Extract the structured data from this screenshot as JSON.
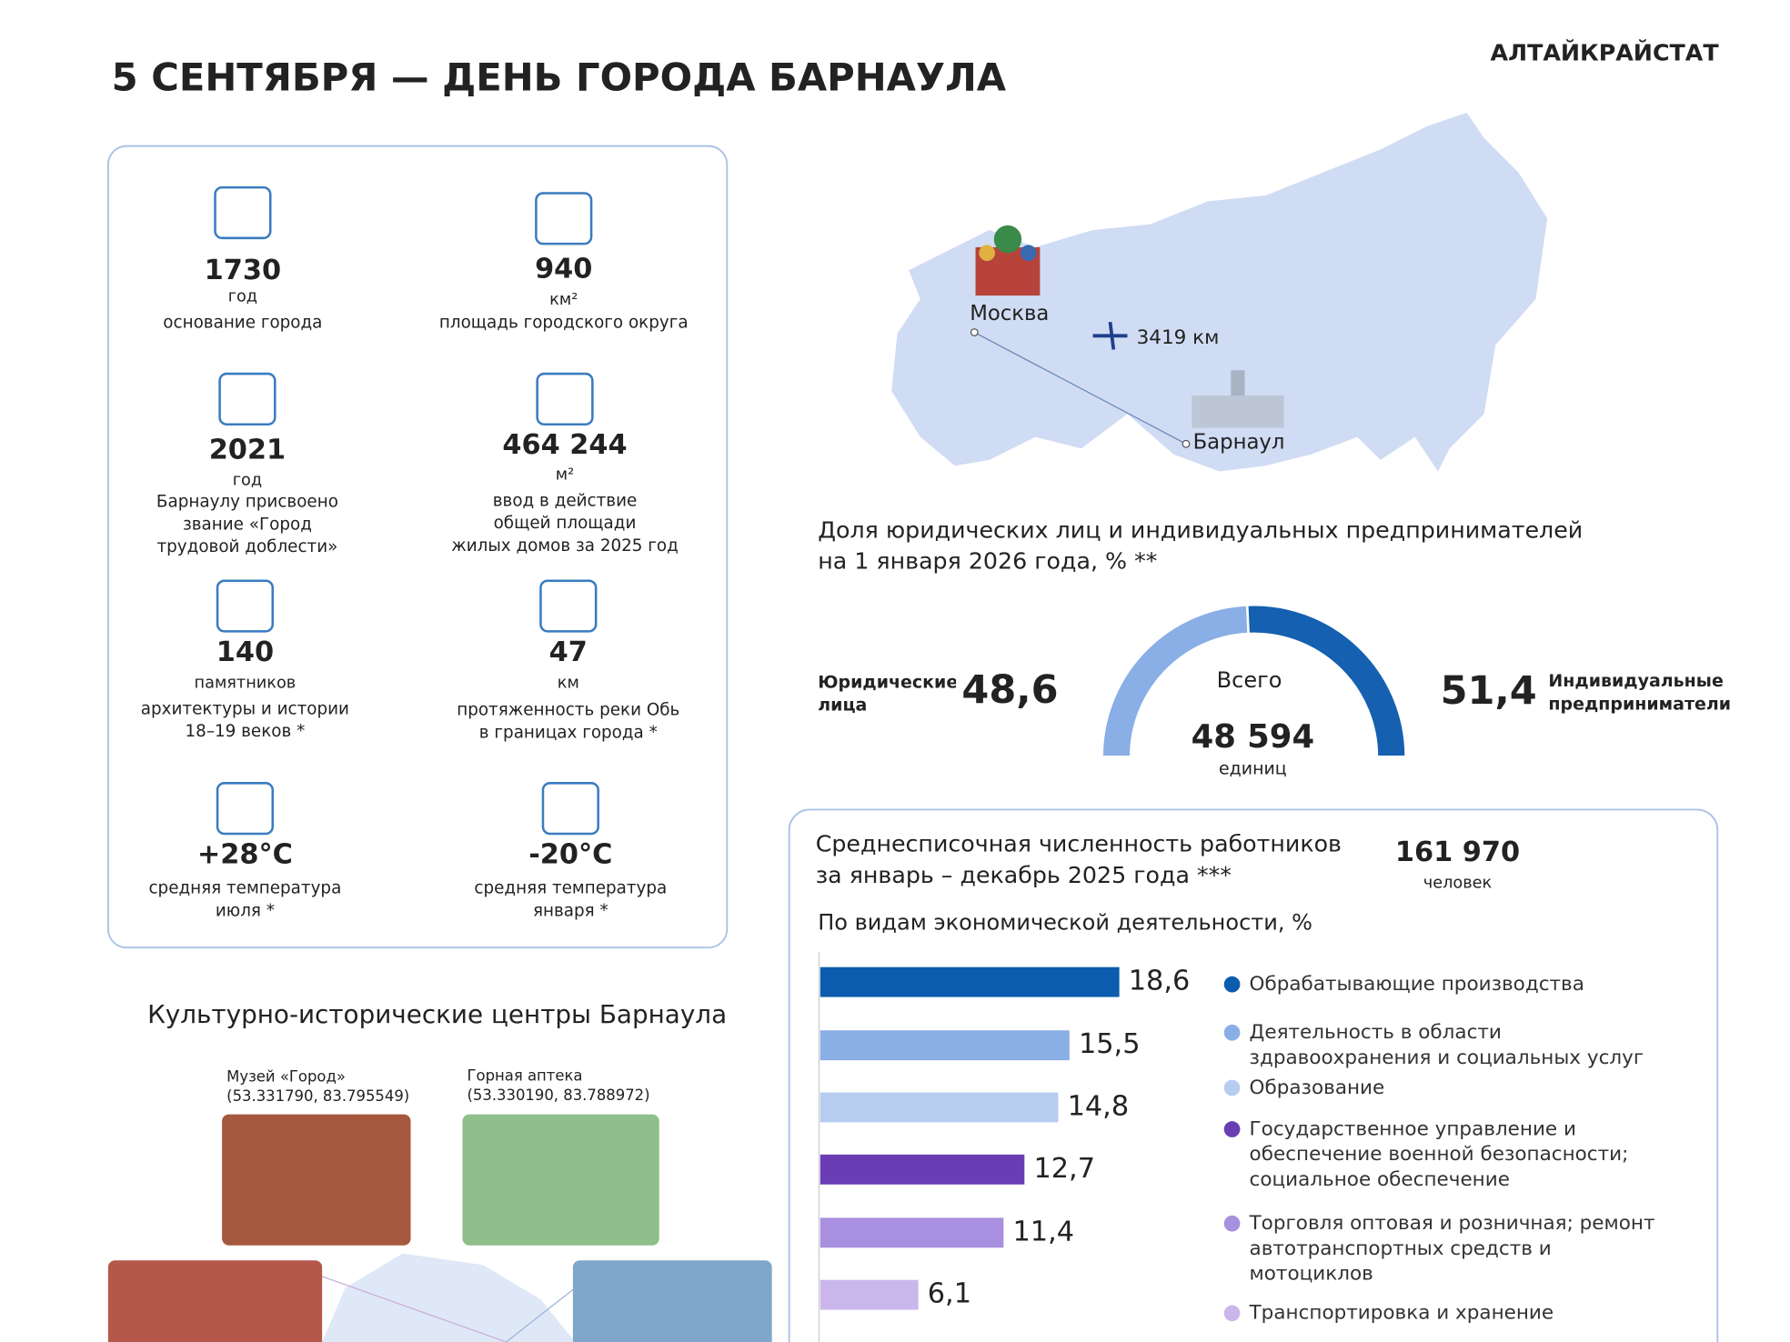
{
  "header": {
    "title": "5 СЕНТЯБРЯ —  ДЕНЬ ГОРОДА БАРНАУЛА",
    "brand": "АЛТАЙКРАЙСТАТ"
  },
  "facts": [
    {
      "value": "1730",
      "unit": "год",
      "description": [
        "основание города"
      ]
    },
    {
      "value": "940",
      "unit": "км²",
      "description": [
        "площадь городского округа"
      ]
    },
    {
      "value": "2021",
      "unit": "год",
      "description": [
        "Барнаулу присвоено",
        "звание «Город",
        "трудовой доблести»"
      ]
    },
    {
      "value": "464 244",
      "unit": "м²",
      "description": [
        "ввод в действие",
        "общей площади",
        "жилых домов за 2025 год"
      ]
    },
    {
      "value": "140",
      "unit": "памятников",
      "description": [
        "архитектуры и истории",
        "18–19 веков *"
      ]
    },
    {
      "value": "47",
      "unit": "км",
      "description": [
        "протяженность реки Обь",
        "в границах города *"
      ]
    },
    {
      "value": "+28°С",
      "description": [
        "средняя температура",
        "июля *"
      ]
    },
    {
      "value": "-20°С",
      "description": [
        "средняя температура",
        "января *"
      ]
    }
  ],
  "map": {
    "moscow": "Москва",
    "barnaul": "Барнаул",
    "distance": "3419 км"
  },
  "culture": {
    "title": "Культурно-исторические центры Барнаула",
    "places": [
      {
        "name": "Музей «Город»",
        "coords": "(53.331790, 83.795549)"
      },
      {
        "name": "Горная аптека",
        "coords": "(53.330190, 83.788972)"
      }
    ]
  },
  "enterprises": {
    "label": "Всего",
    "total": "48 594",
    "unit": "единиц"
  },
  "workers": {
    "title": [
      "Среднесписочная численность работников",
      "за январь – декабрь 2025 года ***"
    ],
    "total": "161 970",
    "unit": "человек"
  },
  "chart_data": [
    {
      "type": "pie",
      "title": [
        "Доля юридических лиц и индивидуальных предпринимателей",
        "на 1 января 2026 года, % **"
      ],
      "categories": [
        "Юридические лица",
        "Индивидуальные предприниматели"
      ],
      "values": [
        48.6,
        51.4
      ],
      "value_labels": [
        "48,6",
        "51,4"
      ],
      "colors": [
        "#8aaee6",
        "#1560b0"
      ]
    },
    {
      "type": "bar",
      "title": "По видам экономической деятельности, %",
      "categories": [
        "Обрабатывающие производства",
        "Деятельность в области здравоохранения и социальных услуг",
        "Образование",
        "Государственное управление и обеспечение военной безопасности; социальное обеспечение",
        "Торговля оптовая и розничная; ремонт автотранспортных средств и мотоциклов",
        "Транспортировка и хранение"
      ],
      "values": [
        18.6,
        15.5,
        14.8,
        12.7,
        11.4,
        6.1
      ],
      "value_labels": [
        "18,6",
        "15,5",
        "14,8",
        "12,7",
        "11,4",
        "6,1"
      ],
      "colors": [
        "#0b5cad",
        "#8aaee6",
        "#b6cdf0",
        "#6a3db5",
        "#a98fdf",
        "#cbb6ec"
      ]
    }
  ]
}
